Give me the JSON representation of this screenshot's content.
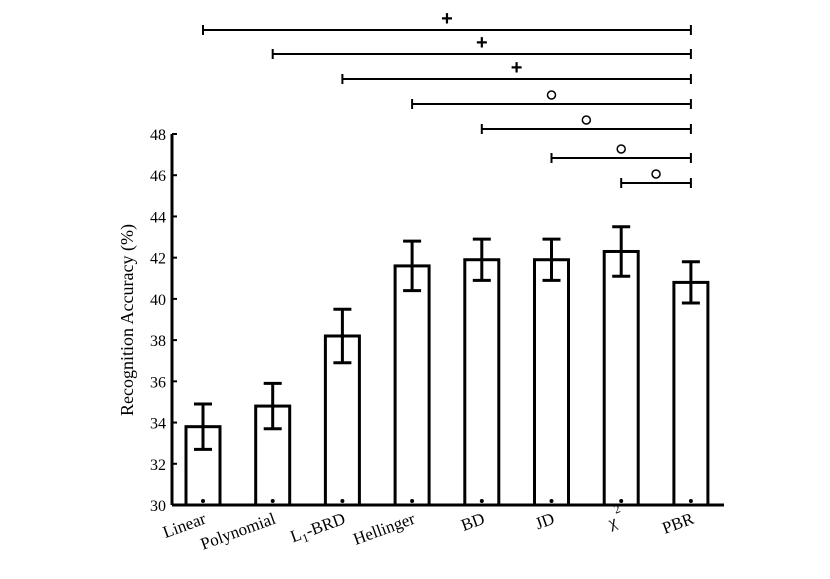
{
  "chart_data": {
    "type": "bar",
    "title": "",
    "xlabel": "",
    "ylabel": "Recognition Accuracy (%)",
    "ylim": [
      30,
      48
    ],
    "yticks": [
      30,
      32,
      34,
      36,
      38,
      40,
      42,
      44,
      46,
      48
    ],
    "categories": [
      {
        "label": "Linear"
      },
      {
        "label": "Polynomial"
      },
      {
        "label": "L",
        "sub": "1",
        "suffix": "-BRD"
      },
      {
        "label": "Hellinger"
      },
      {
        "label": "BD"
      },
      {
        "label": "JD"
      },
      {
        "label": "χ",
        "sup": "2"
      },
      {
        "label": "PBR"
      }
    ],
    "values": [
      33.8,
      34.8,
      38.2,
      41.6,
      41.9,
      41.9,
      42.3,
      40.8
    ],
    "errors": [
      1.1,
      1.1,
      1.3,
      1.2,
      1.0,
      1.0,
      1.2,
      1.0
    ],
    "significance": [
      {
        "from": 0,
        "to": 7,
        "marker": "+"
      },
      {
        "from": 1,
        "to": 7,
        "marker": "+"
      },
      {
        "from": 2,
        "to": 7,
        "marker": "+"
      },
      {
        "from": 3,
        "to": 7,
        "marker": "o"
      },
      {
        "from": 4,
        "to": 7,
        "marker": "o"
      },
      {
        "from": 5,
        "to": 7,
        "marker": "o"
      },
      {
        "from": 6,
        "to": 7,
        "marker": "o"
      }
    ]
  }
}
